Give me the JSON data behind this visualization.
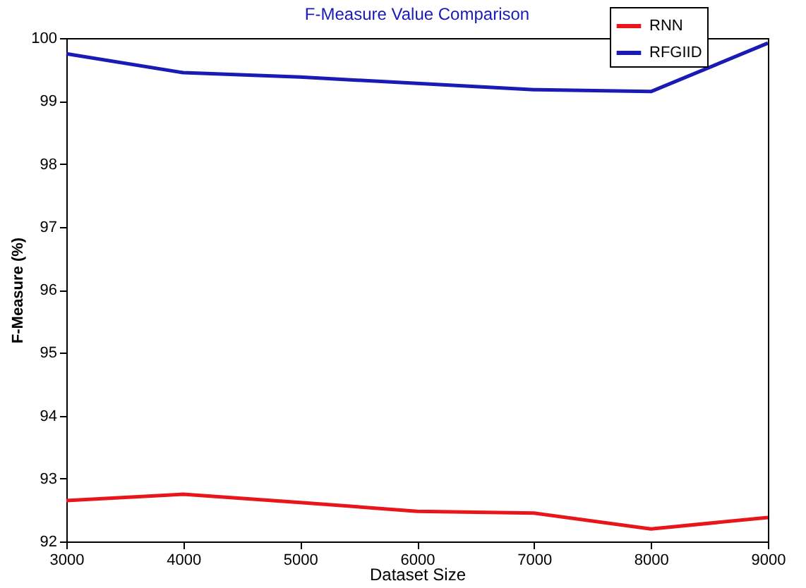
{
  "chart_data": {
    "type": "line",
    "title": "F-Measure Value Comparison",
    "xlabel": "Dataset Size",
    "ylabel": "F-Measure (%)",
    "x": [
      3000,
      4000,
      5000,
      6000,
      7000,
      8000,
      9000
    ],
    "series": [
      {
        "name": "RNN",
        "color": "#e8151b",
        "values": [
          92.65,
          92.75,
          92.62,
          92.48,
          92.45,
          92.2,
          92.38
        ]
      },
      {
        "name": "RFGIID",
        "color": "#1a1ab5",
        "values": [
          99.75,
          99.45,
          99.38,
          99.28,
          99.18,
          99.15,
          99.92
        ]
      }
    ],
    "xlim": [
      3000,
      9000
    ],
    "xticks": [
      3000,
      4000,
      5000,
      6000,
      7000,
      8000,
      9000
    ],
    "ylim": [
      92,
      100
    ],
    "yticks": [
      92,
      93,
      94,
      95,
      96,
      97,
      98,
      99,
      100
    ],
    "grid": false,
    "legend": "top right",
    "marker": "none",
    "line_style": "solid"
  }
}
